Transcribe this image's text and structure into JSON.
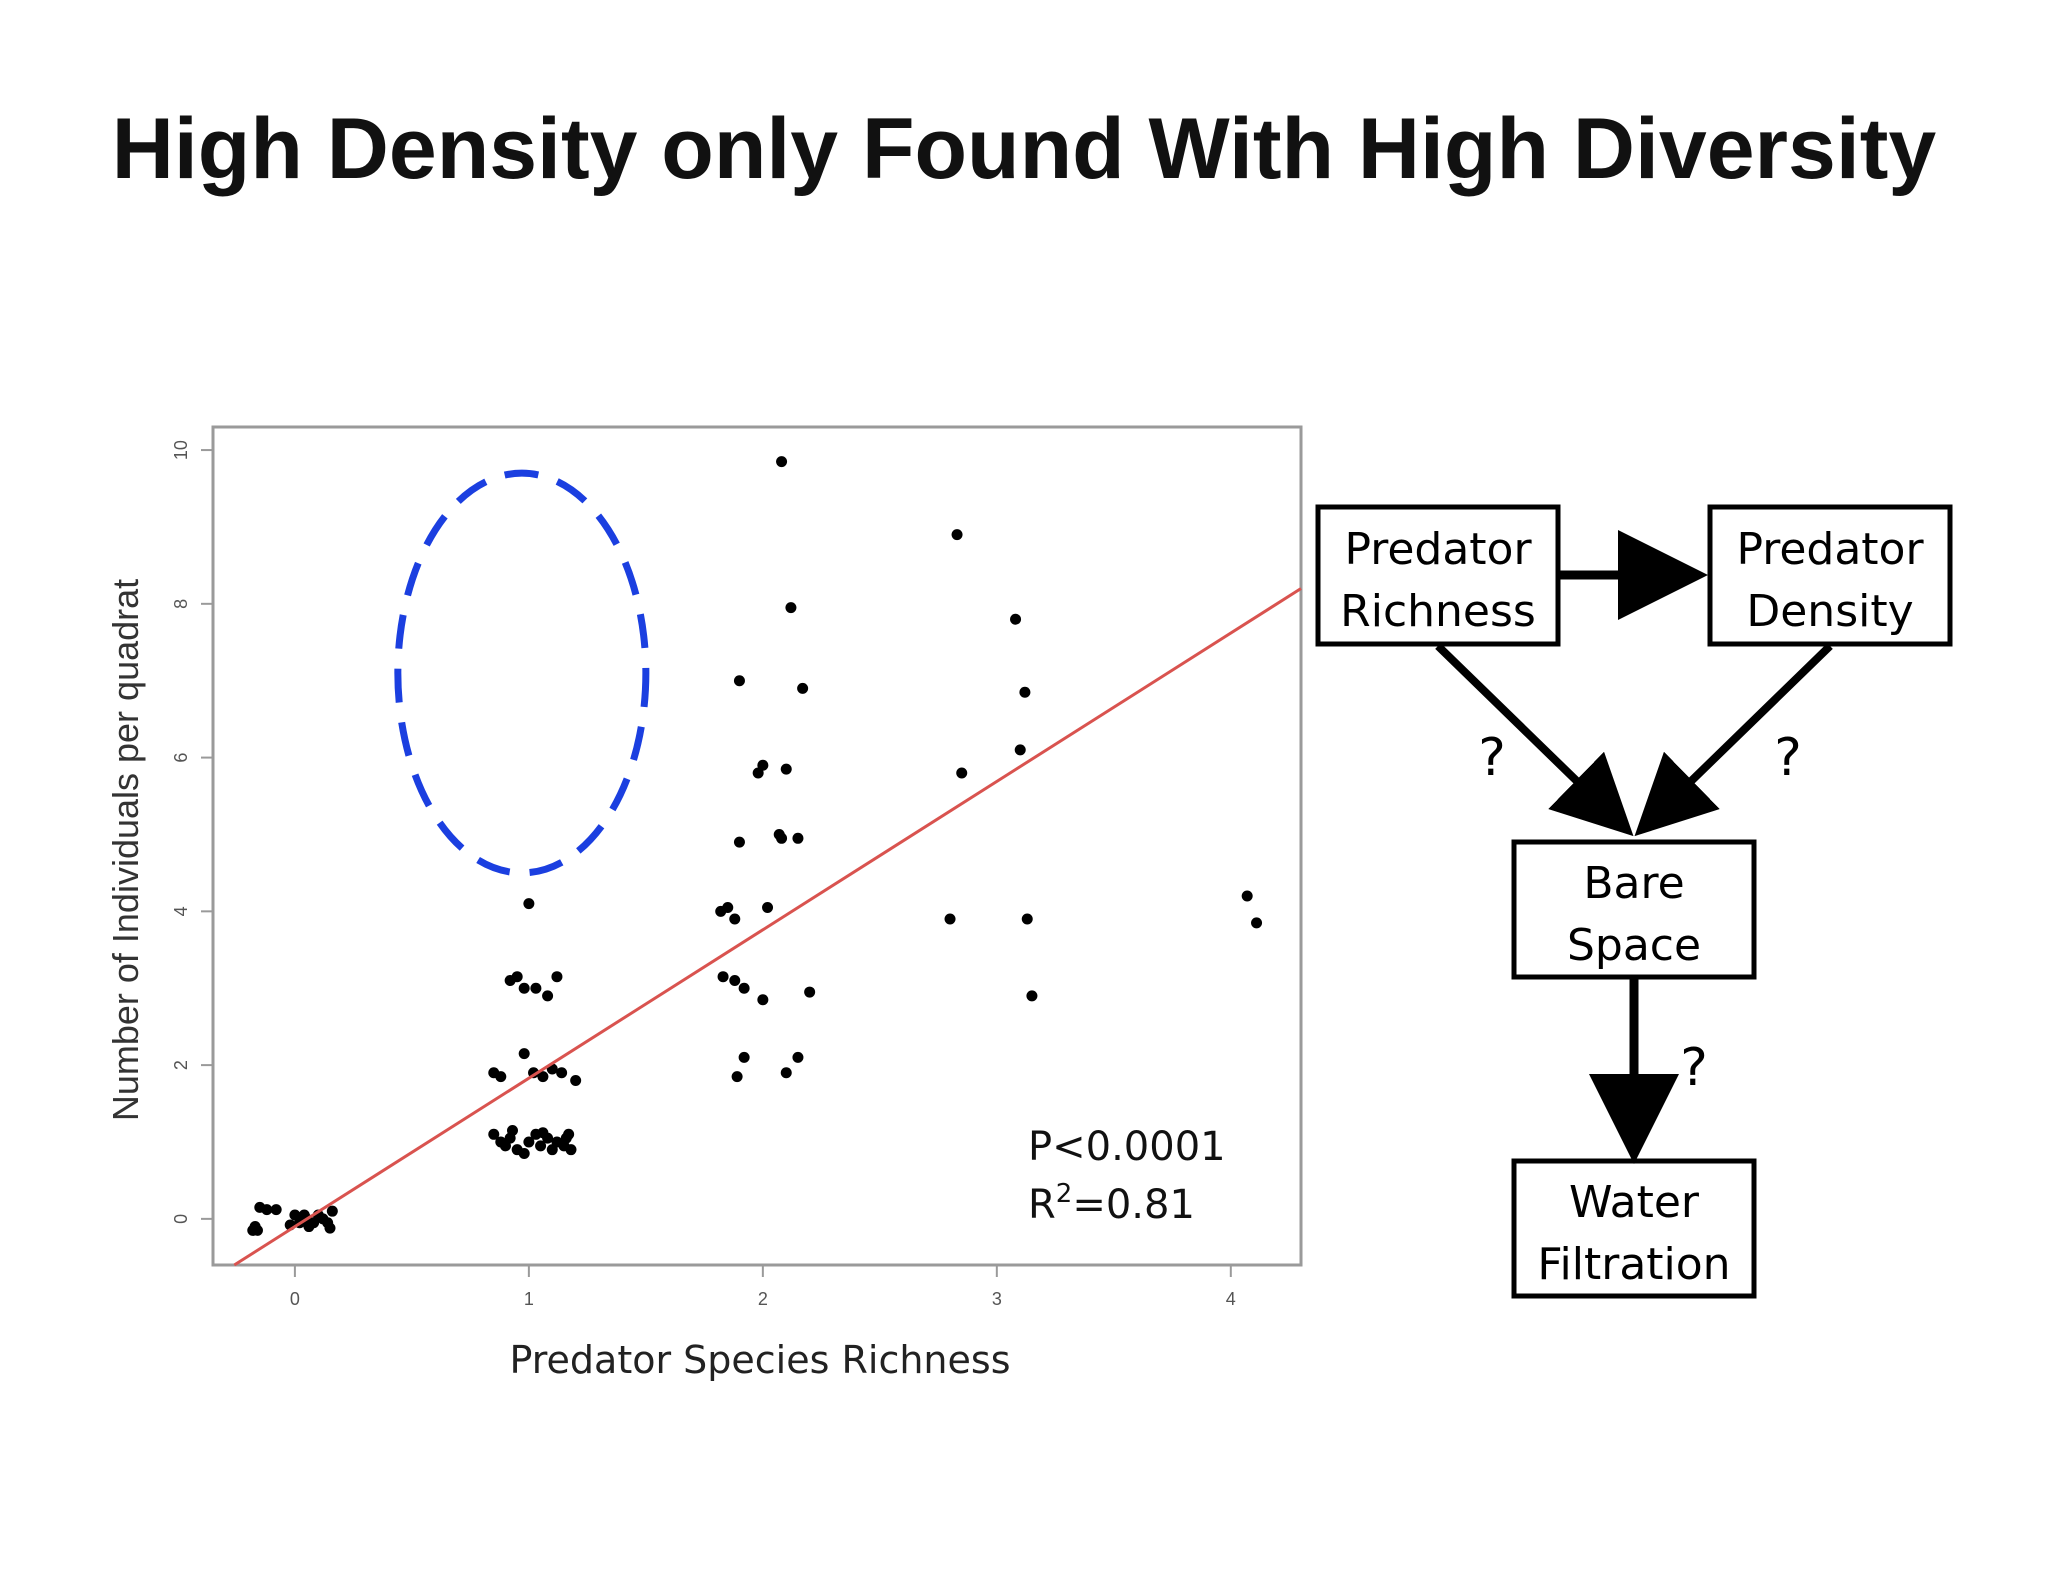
{
  "title": "High Density only Found With High Diversity",
  "chart_data": {
    "type": "scatter",
    "xlabel": "Predator Species Richness",
    "ylabel": "Number of Individuals per quadrat",
    "xlim": [
      -0.35,
      4.3
    ],
    "ylim": [
      -0.6,
      10.3
    ],
    "xticks": [
      0,
      1,
      2,
      3,
      4
    ],
    "yticks": [
      0,
      2,
      4,
      6,
      8,
      10
    ],
    "grid": false,
    "regression_line": {
      "intercept": -0.1,
      "slope": 1.93,
      "color": "#d9534f"
    },
    "highlight_ellipse": {
      "cx": 0.97,
      "cy": 7.1,
      "rx": 0.53,
      "ry": 2.6,
      "color": "#1b3fe0",
      "style": "dashed"
    },
    "stats": {
      "p": "P<0.0001",
      "r2_prefix": "R",
      "r2_sup": "2",
      "r2_value": "=0.81"
    },
    "points": [
      [
        -0.17,
        -0.1
      ],
      [
        -0.15,
        0.15
      ],
      [
        -0.12,
        0.12
      ],
      [
        -0.08,
        0.12
      ],
      [
        -0.18,
        -0.15
      ],
      [
        -0.16,
        -0.15
      ],
      [
        0.0,
        0.05
      ],
      [
        0.02,
        -0.05
      ],
      [
        0.04,
        0.05
      ],
      [
        0.06,
        -0.1
      ],
      [
        0.08,
        -0.05
      ],
      [
        0.1,
        0.05
      ],
      [
        0.12,
        0.0
      ],
      [
        0.14,
        -0.05
      ],
      [
        0.16,
        0.1
      ],
      [
        0.15,
        -0.12
      ],
      [
        0.05,
        0.0
      ],
      [
        -0.02,
        -0.08
      ],
      [
        0.85,
        1.1
      ],
      [
        0.88,
        1.0
      ],
      [
        0.9,
        0.95
      ],
      [
        0.92,
        1.05
      ],
      [
        0.95,
        0.9
      ],
      [
        0.98,
        0.85
      ],
      [
        1.0,
        1.0
      ],
      [
        1.03,
        1.1
      ],
      [
        1.05,
        0.95
      ],
      [
        1.08,
        1.05
      ],
      [
        1.1,
        0.9
      ],
      [
        1.12,
        1.0
      ],
      [
        1.15,
        0.95
      ],
      [
        1.17,
        1.1
      ],
      [
        1.18,
        0.9
      ],
      [
        0.93,
        1.15
      ],
      [
        1.06,
        1.12
      ],
      [
        1.16,
        1.05
      ],
      [
        0.85,
        1.9
      ],
      [
        0.88,
        1.85
      ],
      [
        0.98,
        2.15
      ],
      [
        1.02,
        1.9
      ],
      [
        1.06,
        1.85
      ],
      [
        1.1,
        1.95
      ],
      [
        1.14,
        1.9
      ],
      [
        1.2,
        1.8
      ],
      [
        0.92,
        3.1
      ],
      [
        0.95,
        3.15
      ],
      [
        0.98,
        3.0
      ],
      [
        1.03,
        3.0
      ],
      [
        1.08,
        2.9
      ],
      [
        1.12,
        3.15
      ],
      [
        1.0,
        4.1
      ],
      [
        1.82,
        4.0
      ],
      [
        1.85,
        4.05
      ],
      [
        1.88,
        3.9
      ],
      [
        2.02,
        4.05
      ],
      [
        1.83,
        3.15
      ],
      [
        1.88,
        3.1
      ],
      [
        1.92,
        3.0
      ],
      [
        2.0,
        2.85
      ],
      [
        2.2,
        2.95
      ],
      [
        1.89,
        1.85
      ],
      [
        1.92,
        2.1
      ],
      [
        2.1,
        1.9
      ],
      [
        2.15,
        2.1
      ],
      [
        1.9,
        4.9
      ],
      [
        2.08,
        4.95
      ],
      [
        2.07,
        5.0
      ],
      [
        2.15,
        4.95
      ],
      [
        1.98,
        5.8
      ],
      [
        2.0,
        5.9
      ],
      [
        2.1,
        5.85
      ],
      [
        1.9,
        7.0
      ],
      [
        2.17,
        6.9
      ],
      [
        2.12,
        7.95
      ],
      [
        2.08,
        9.85
      ],
      [
        2.8,
        3.9
      ],
      [
        2.85,
        5.8
      ],
      [
        2.83,
        8.9
      ],
      [
        3.08,
        7.8
      ],
      [
        3.12,
        6.85
      ],
      [
        3.1,
        6.1
      ],
      [
        3.13,
        3.9
      ],
      [
        3.15,
        2.9
      ],
      [
        4.07,
        4.2
      ],
      [
        4.11,
        3.85
      ]
    ]
  },
  "diagram": {
    "nodes": {
      "predator_richness": [
        "Predator",
        "Richness"
      ],
      "predator_density": [
        "Predator",
        "Density"
      ],
      "bare_space": [
        "Bare",
        "Space"
      ],
      "water_filtration": [
        "Water",
        "Filtration"
      ]
    },
    "question_marks": [
      "?",
      "?",
      "?"
    ]
  }
}
